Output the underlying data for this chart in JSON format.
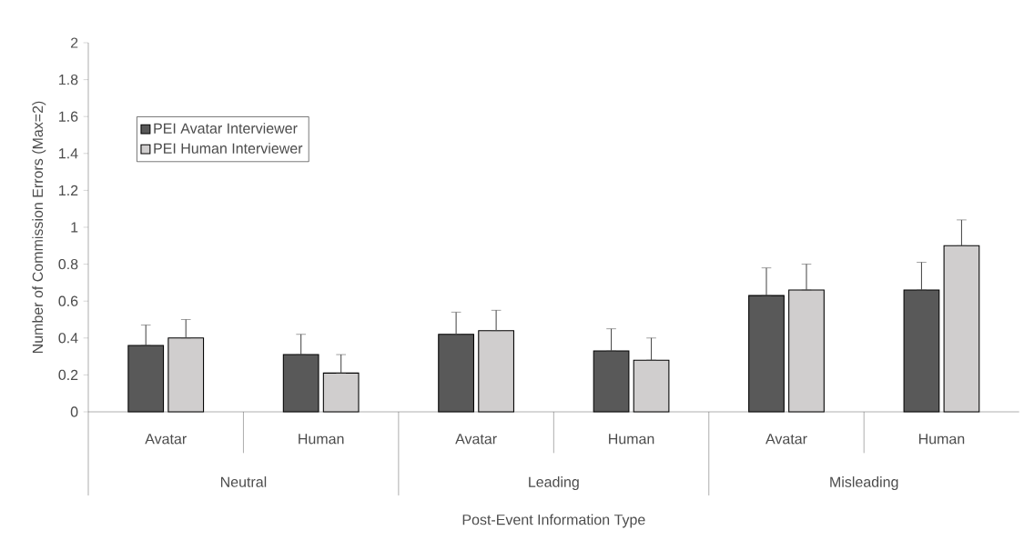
{
  "chart_data": {
    "type": "bar",
    "categories": [
      "Avatar",
      "Human",
      "Avatar",
      "Human",
      "Avatar",
      "Human"
    ],
    "series": [
      {
        "name": "PEI Avatar Interviewer",
        "color": "#595959",
        "values": [
          0.36,
          0.31,
          0.42,
          0.33,
          0.63,
          0.66
        ],
        "errors": [
          [
            0.36,
            0.47
          ],
          [
            0.31,
            0.42
          ],
          [
            0.42,
            0.54
          ],
          [
            0.33,
            0.45
          ],
          [
            0.63,
            0.78
          ],
          [
            0.66,
            0.81
          ]
        ]
      },
      {
        "name": "PEI Human Interviewer",
        "color": "#d0cece",
        "values": [
          0.4,
          0.21,
          0.44,
          0.28,
          0.66,
          0.9
        ],
        "errors": [
          [
            0.4,
            0.5
          ],
          [
            0.21,
            0.31
          ],
          [
            0.44,
            0.55
          ],
          [
            0.28,
            0.4
          ],
          [
            0.66,
            0.8
          ],
          [
            0.9,
            1.04
          ]
        ]
      }
    ],
    "ylim": [
      0,
      2
    ],
    "yticks": [
      0,
      0.2,
      0.4,
      0.6,
      0.8,
      1,
      1.2,
      1.4,
      1.6,
      1.8,
      2
    ],
    "ylabel": "Number of Commission Errors (Max=2)",
    "xlabel": "Post-Event Information Type",
    "annotations": [
      "Neutral",
      "Leading",
      "Misleading"
    ],
    "legend": "top left"
  }
}
